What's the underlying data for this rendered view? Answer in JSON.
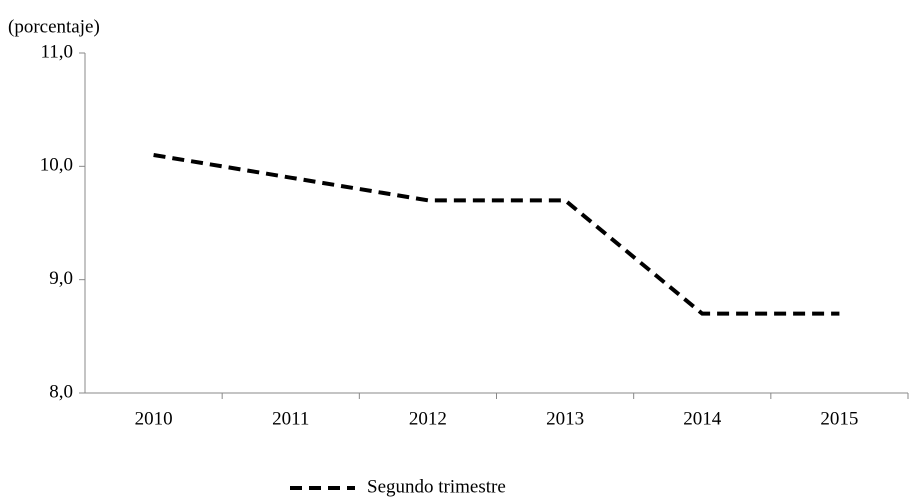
{
  "chart_data": {
    "type": "line",
    "y_label": "(porcentaje)",
    "categories": [
      "2010",
      "2011",
      "2012",
      "2013",
      "2014",
      "2015"
    ],
    "series": [
      {
        "name": "Segundo trimestre",
        "color": "#000000",
        "dash": true,
        "values": [
          10.1,
          9.9,
          9.7,
          9.7,
          8.7,
          8.7
        ]
      }
    ],
    "ylim": [
      8,
      11
    ],
    "yticks": [
      {
        "value": 8,
        "label": "8,0"
      },
      {
        "value": 9,
        "label": "9,0"
      },
      {
        "value": 10,
        "label": "10,0"
      },
      {
        "value": 11,
        "label": "11,0"
      }
    ],
    "grid": false,
    "legend": "bottom"
  }
}
